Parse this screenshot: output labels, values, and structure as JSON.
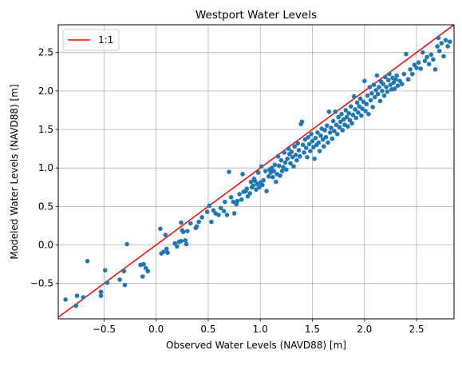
{
  "chart_data": {
    "type": "scatter",
    "title": "Westport Water Levels",
    "xlabel": "Observed Water Levels (NAVD88) [m]",
    "ylabel": "Modeled Water Levels (NAVD88) [m]",
    "xlim": [
      -0.94,
      2.86
    ],
    "ylim": [
      -0.96,
      2.86
    ],
    "x_ticks": [
      -0.5,
      0.0,
      0.5,
      1.0,
      1.5,
      2.0,
      2.5
    ],
    "x_tick_labels": [
      "−0.5",
      "0.0",
      "0.5",
      "1.0",
      "1.5",
      "2.0",
      "2.5"
    ],
    "y_ticks": [
      -0.5,
      0.0,
      0.5,
      1.0,
      1.5,
      2.0,
      2.5
    ],
    "y_tick_labels": [
      "−0.5",
      "0.0",
      "0.5",
      "1.0",
      "1.5",
      "2.0",
      "2.5"
    ],
    "grid": true,
    "legend_position": "top-left",
    "colors": {
      "points": "#1f77b4",
      "reference_line": "#ff0000",
      "grid": "#b0b0b0"
    },
    "reference_line": {
      "name": "1:1",
      "x": [
        -0.94,
        2.86
      ],
      "y": [
        -0.94,
        2.86
      ]
    },
    "series": [
      {
        "points": [
          [
            -0.87,
            -0.71
          ],
          [
            -0.77,
            -0.79
          ],
          [
            -0.76,
            -0.66
          ],
          [
            -0.7,
            -0.68
          ],
          [
            -0.66,
            -0.21
          ],
          [
            -0.53,
            -0.61
          ],
          [
            -0.53,
            -0.66
          ],
          [
            -0.49,
            -0.33
          ],
          [
            -0.47,
            -0.49
          ],
          [
            -0.35,
            -0.45
          ],
          [
            -0.31,
            -0.34
          ],
          [
            -0.3,
            -0.52
          ],
          [
            -0.28,
            0.01
          ],
          [
            -0.15,
            -0.26
          ],
          [
            -0.13,
            -0.41
          ],
          [
            -0.12,
            -0.25
          ],
          [
            -0.1,
            -0.3
          ],
          [
            -0.08,
            -0.34
          ],
          [
            0.04,
            0.21
          ],
          [
            0.05,
            -0.11
          ],
          [
            0.07,
            -0.09
          ],
          [
            0.09,
            0.13
          ],
          [
            0.1,
            -0.05
          ],
          [
            0.11,
            -0.1
          ],
          [
            0.18,
            0.02
          ],
          [
            0.2,
            -0.02
          ],
          [
            0.22,
            0.04
          ],
          [
            0.24,
            0.05
          ],
          [
            0.24,
            0.29
          ],
          [
            0.25,
            0.19
          ],
          [
            0.26,
            0.17
          ],
          [
            0.28,
            0.06
          ],
          [
            0.29,
            0.01
          ],
          [
            0.3,
            0.18
          ],
          [
            0.33,
            0.28
          ],
          [
            0.38,
            0.22
          ],
          [
            0.39,
            0.24
          ],
          [
            0.41,
            0.3
          ],
          [
            0.44,
            0.36
          ],
          [
            0.49,
            0.43
          ],
          [
            0.51,
            0.51
          ],
          [
            0.53,
            0.3
          ],
          [
            0.55,
            0.45
          ],
          [
            0.57,
            0.41
          ],
          [
            0.6,
            0.39
          ],
          [
            0.62,
            0.48
          ],
          [
            0.65,
            0.44
          ],
          [
            0.66,
            0.56
          ],
          [
            0.68,
            0.39
          ],
          [
            0.7,
            0.95
          ],
          [
            0.72,
            0.62
          ],
          [
            0.74,
            0.56
          ],
          [
            0.75,
            0.41
          ],
          [
            0.77,
            0.53
          ],
          [
            0.78,
            0.57
          ],
          [
            0.8,
            0.66
          ],
          [
            0.82,
            0.59
          ],
          [
            0.83,
            0.92
          ],
          [
            0.84,
            0.69
          ],
          [
            0.86,
            0.7
          ],
          [
            0.87,
            0.73
          ],
          [
            0.88,
            0.63
          ],
          [
            0.9,
            0.67
          ],
          [
            0.91,
            0.82
          ],
          [
            0.92,
            0.75
          ],
          [
            0.93,
            0.77
          ],
          [
            0.94,
            0.86
          ],
          [
            0.95,
            0.83
          ],
          [
            0.96,
            0.72
          ],
          [
            0.97,
            0.79
          ],
          [
            0.98,
            0.94
          ],
          [
            0.99,
            0.75
          ],
          [
            1.0,
            0.81
          ],
          [
            1.01,
            1.02
          ],
          [
            1.02,
            0.78
          ],
          [
            1.03,
            0.84
          ],
          [
            1.05,
            0.96
          ],
          [
            1.06,
            0.7
          ],
          [
            1.08,
            0.89
          ],
          [
            1.09,
            0.98
          ],
          [
            1.1,
            0.94
          ],
          [
            1.11,
            1.0
          ],
          [
            1.12,
            0.88
          ],
          [
            1.13,
            0.96
          ],
          [
            1.14,
            1.04
          ],
          [
            1.15,
            0.82
          ],
          [
            1.16,
            0.92
          ],
          [
            1.17,
            1.15
          ],
          [
            1.18,
            1.03
          ],
          [
            1.19,
            0.9
          ],
          [
            1.2,
            1.1
          ],
          [
            1.21,
            0.96
          ],
          [
            1.22,
            1.01
          ],
          [
            1.23,
            1.2
          ],
          [
            1.24,
            1.07
          ],
          [
            1.25,
            0.98
          ],
          [
            1.26,
            1.12
          ],
          [
            1.27,
            1.25
          ],
          [
            1.28,
            1.18
          ],
          [
            1.29,
            1.06
          ],
          [
            1.3,
            1.21
          ],
          [
            1.31,
            1.14
          ],
          [
            1.32,
            1.02
          ],
          [
            1.33,
            1.28
          ],
          [
            1.34,
            1.17
          ],
          [
            1.35,
            1.1
          ],
          [
            1.36,
            1.32
          ],
          [
            1.37,
            1.23
          ],
          [
            1.38,
            1.15
          ],
          [
            1.39,
            1.57
          ],
          [
            1.4,
            1.6
          ],
          [
            1.41,
            1.3
          ],
          [
            1.42,
            1.2
          ],
          [
            1.43,
            1.37
          ],
          [
            1.44,
            1.26
          ],
          [
            1.45,
            1.14
          ],
          [
            1.46,
            1.4
          ],
          [
            1.47,
            1.31
          ],
          [
            1.48,
            1.22
          ],
          [
            1.49,
            1.44
          ],
          [
            1.5,
            1.35
          ],
          [
            1.51,
            1.27
          ],
          [
            1.52,
            1.12
          ],
          [
            1.53,
            1.39
          ],
          [
            1.54,
            1.3
          ],
          [
            1.55,
            1.46
          ],
          [
            1.56,
            1.33
          ],
          [
            1.57,
            1.22
          ],
          [
            1.58,
            1.42
          ],
          [
            1.59,
            1.51
          ],
          [
            1.6,
            1.37
          ],
          [
            1.61,
            1.28
          ],
          [
            1.62,
            1.49
          ],
          [
            1.63,
            1.4
          ],
          [
            1.64,
            1.55
          ],
          [
            1.65,
            1.33
          ],
          [
            1.66,
            1.73
          ],
          [
            1.67,
            1.46
          ],
          [
            1.68,
            1.52
          ],
          [
            1.69,
            1.38
          ],
          [
            1.7,
            1.61
          ],
          [
            1.71,
            1.48
          ],
          [
            1.72,
            1.73
          ],
          [
            1.73,
            1.56
          ],
          [
            1.74,
            1.44
          ],
          [
            1.75,
            1.66
          ],
          [
            1.76,
            1.53
          ],
          [
            1.77,
            1.6
          ],
          [
            1.78,
            1.7
          ],
          [
            1.79,
            1.49
          ],
          [
            1.8,
            1.63
          ],
          [
            1.81,
            1.56
          ],
          [
            1.82,
            1.75
          ],
          [
            1.83,
            1.66
          ],
          [
            1.84,
            1.54
          ],
          [
            1.85,
            1.71
          ],
          [
            1.86,
            1.62
          ],
          [
            1.87,
            1.8
          ],
          [
            1.88,
            1.58
          ],
          [
            1.89,
            1.69
          ],
          [
            1.9,
            1.93
          ],
          [
            1.91,
            1.76
          ],
          [
            1.92,
            1.65
          ],
          [
            1.93,
            1.85
          ],
          [
            1.94,
            1.72
          ],
          [
            1.95,
            1.8
          ],
          [
            1.96,
            1.9
          ],
          [
            1.97,
            1.68
          ],
          [
            1.98,
            1.77
          ],
          [
            1.99,
            1.86
          ],
          [
            2.0,
            2.13
          ],
          [
            2.01,
            1.74
          ],
          [
            2.02,
            1.83
          ],
          [
            2.03,
            1.94
          ],
          [
            2.04,
            1.7
          ],
          [
            2.05,
            2.05
          ],
          [
            2.06,
            1.88
          ],
          [
            2.07,
            1.97
          ],
          [
            2.08,
            1.79
          ],
          [
            2.09,
            2.08
          ],
          [
            2.1,
            1.92
          ],
          [
            2.11,
            2.01
          ],
          [
            2.12,
            2.2
          ],
          [
            2.13,
            1.96
          ],
          [
            2.14,
            2.05
          ],
          [
            2.15,
            1.87
          ],
          [
            2.16,
            2.12
          ],
          [
            2.17,
            2.0
          ],
          [
            2.18,
            2.09
          ],
          [
            2.19,
            1.94
          ],
          [
            2.2,
            2.18
          ],
          [
            2.21,
            2.05
          ],
          [
            2.22,
            1.99
          ],
          [
            2.23,
            2.14
          ],
          [
            2.24,
            2.22
          ],
          [
            2.25,
            2.08
          ],
          [
            2.26,
            2.02
          ],
          [
            2.27,
            2.17
          ],
          [
            2.28,
            2.11
          ],
          [
            2.29,
            2.03
          ],
          [
            2.3,
            2.15
          ],
          [
            2.31,
            2.2
          ],
          [
            2.32,
            2.07
          ],
          [
            2.34,
            2.13
          ],
          [
            2.36,
            2.09
          ],
          [
            2.38,
            2.22
          ],
          [
            2.4,
            2.48
          ],
          [
            2.42,
            2.15
          ],
          [
            2.44,
            2.28
          ],
          [
            2.46,
            2.22
          ],
          [
            2.48,
            2.34
          ],
          [
            2.5,
            2.3
          ],
          [
            2.52,
            2.37
          ],
          [
            2.54,
            2.29
          ],
          [
            2.56,
            2.5
          ],
          [
            2.58,
            2.39
          ],
          [
            2.6,
            2.44
          ],
          [
            2.62,
            2.35
          ],
          [
            2.64,
            2.47
          ],
          [
            2.66,
            2.41
          ],
          [
            2.68,
            2.28
          ],
          [
            2.7,
            2.58
          ],
          [
            2.71,
            2.69
          ],
          [
            2.72,
            2.52
          ],
          [
            2.74,
            2.62
          ],
          [
            2.76,
            2.45
          ],
          [
            2.78,
            2.66
          ],
          [
            2.8,
            2.58
          ],
          [
            2.82,
            2.64
          ]
        ]
      }
    ]
  }
}
